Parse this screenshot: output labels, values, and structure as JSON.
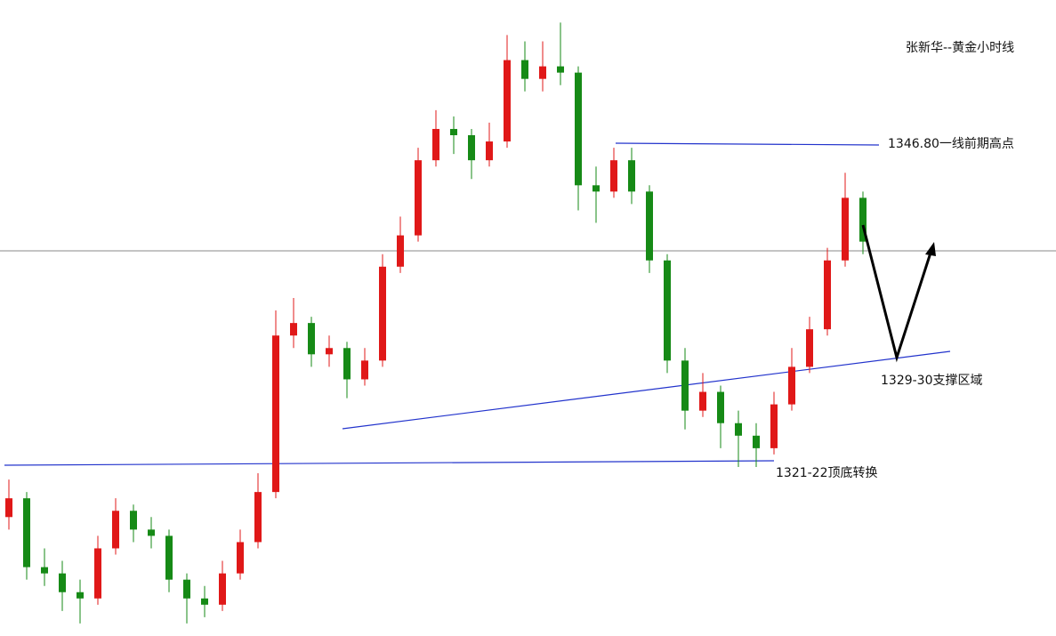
{
  "chart_data": {
    "type": "candlestick",
    "title": "张新华--黄金小时线",
    "annotations": [
      "1346.80一线前期高点",
      "1329-30支撑区域",
      "1321-22顶底转换"
    ],
    "up_color": "#e01818",
    "down_color": "#168a16",
    "ylim": [
      1307.5,
      1358.3
    ],
    "open": [
      1317.0,
      1318.5,
      1313.0,
      1312.5,
      1311.0,
      1310.5,
      1314.5,
      1317.5,
      1316.0,
      1315.5,
      1312.0,
      1310.5,
      1310.0,
      1312.5,
      1315.0,
      1319.0,
      1331.5,
      1332.5,
      1330.0,
      1330.5,
      1328.0,
      1329.5,
      1337.0,
      1339.5,
      1345.5,
      1348.0,
      1347.5,
      1345.5,
      1347.0,
      1353.5,
      1352.0,
      1353.0,
      1352.5,
      1343.5,
      1343.0,
      1345.5,
      1343.0,
      1337.5,
      1329.5,
      1325.5,
      1327.0,
      1324.5,
      1323.5,
      1322.5,
      1326.0,
      1329.0,
      1332.0,
      1337.5,
      1342.5
    ],
    "high": [
      1320.0,
      1319.0,
      1314.5,
      1313.5,
      1312.0,
      1315.5,
      1318.5,
      1318.0,
      1317.0,
      1316.0,
      1312.5,
      1311.5,
      1313.5,
      1316.0,
      1320.5,
      1333.5,
      1334.5,
      1333.0,
      1331.5,
      1331.0,
      1330.5,
      1338.0,
      1341.0,
      1346.5,
      1349.5,
      1349.0,
      1348.0,
      1348.5,
      1355.5,
      1355.0,
      1355.0,
      1356.5,
      1353.0,
      1345.0,
      1346.5,
      1346.5,
      1343.5,
      1338.0,
      1330.5,
      1328.5,
      1327.5,
      1325.5,
      1324.5,
      1327.0,
      1330.5,
      1333.0,
      1338.5,
      1344.5,
      1343.0
    ],
    "low": [
      1316.0,
      1312.0,
      1311.5,
      1309.5,
      1308.5,
      1310.0,
      1314.0,
      1315.0,
      1314.5,
      1311.0,
      1308.5,
      1309.0,
      1309.5,
      1312.0,
      1314.5,
      1318.5,
      1330.5,
      1329.0,
      1329.0,
      1326.5,
      1327.5,
      1329.0,
      1336.5,
      1339.0,
      1345.0,
      1346.0,
      1344.0,
      1345.0,
      1346.5,
      1351.0,
      1351.0,
      1351.5,
      1341.5,
      1340.5,
      1342.5,
      1342.0,
      1336.5,
      1328.5,
      1324.0,
      1325.0,
      1322.5,
      1321.0,
      1321.0,
      1322.0,
      1325.5,
      1328.5,
      1331.5,
      1337.0,
      1338.0
    ],
    "close": [
      1318.5,
      1313.0,
      1312.5,
      1311.0,
      1310.5,
      1314.5,
      1317.5,
      1316.0,
      1315.5,
      1312.0,
      1310.5,
      1310.0,
      1312.5,
      1315.0,
      1319.0,
      1331.5,
      1332.5,
      1330.0,
      1330.5,
      1328.0,
      1329.5,
      1337.0,
      1339.5,
      1345.5,
      1348.0,
      1347.5,
      1345.5,
      1347.0,
      1353.5,
      1352.0,
      1353.0,
      1352.5,
      1343.5,
      1343.0,
      1345.5,
      1343.0,
      1337.5,
      1329.5,
      1325.5,
      1327.0,
      1324.5,
      1323.5,
      1322.5,
      1326.0,
      1329.0,
      1332.0,
      1337.5,
      1342.5,
      1339.0
    ]
  }
}
